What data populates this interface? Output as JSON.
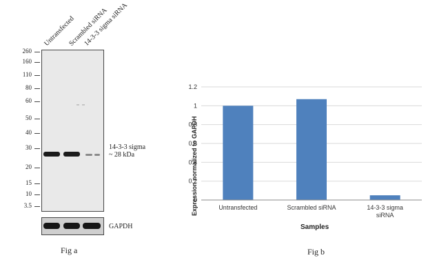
{
  "blot": {
    "lanes": [
      "Untransfected",
      "Scrambled siRNA",
      "14-3-3 sigma siRNA"
    ],
    "mw_markers": [
      "260",
      "160",
      "110",
      "80",
      "60",
      "50",
      "40",
      "30",
      "20",
      "15",
      "10",
      "3.5"
    ],
    "band_label_line1": "14-3-3  sigma",
    "band_label_line2": "~ 28 kDa",
    "loading_control": "GAPDH"
  },
  "captions": {
    "fig_a": "Fig a",
    "fig_b": "Fig b"
  },
  "colors": {
    "bar": "#4F81BD",
    "grid": "#d9d9d9",
    "axis": "#888888"
  },
  "chart_data": {
    "type": "bar",
    "title": "",
    "xlabel": "Samples",
    "ylabel": "Expression  normalized to GAPDH",
    "categories": [
      [
        "Untransfected"
      ],
      [
        "Scrambled siRNA"
      ],
      [
        "14-3-3 sigma",
        "siRNA"
      ]
    ],
    "values": [
      1.0,
      1.07,
      0.05
    ],
    "ylim": [
      0,
      1.2
    ],
    "yticks": [
      "0",
      "0.2",
      "0.4",
      "0.6",
      "0.8",
      "1",
      "1.2"
    ],
    "grid": true,
    "legend": "none"
  }
}
